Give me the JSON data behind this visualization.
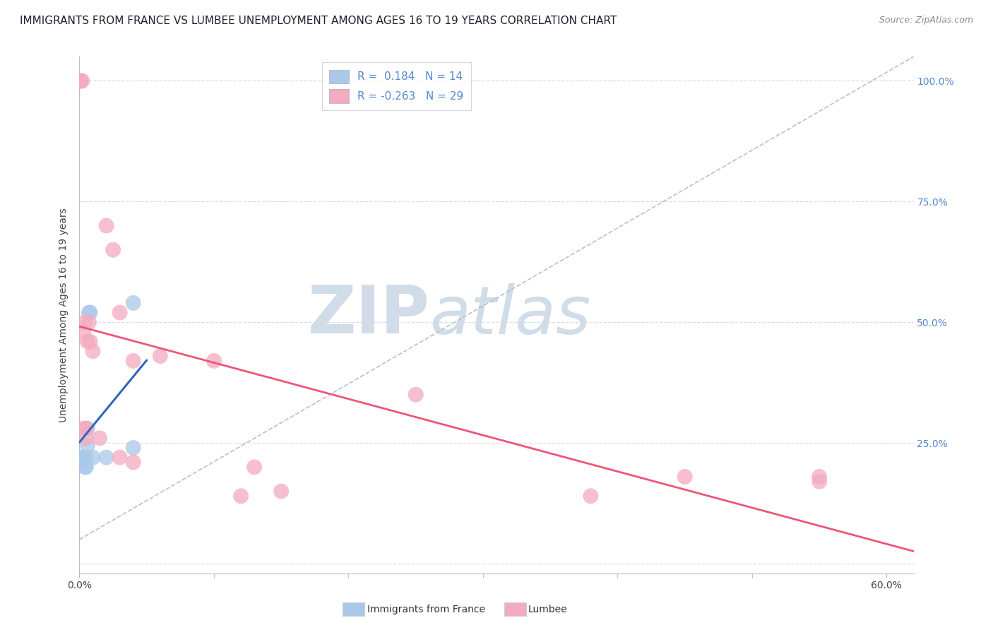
{
  "title": "IMMIGRANTS FROM FRANCE VS LUMBEE UNEMPLOYMENT AMONG AGES 16 TO 19 YEARS CORRELATION CHART",
  "source": "Source: ZipAtlas.com",
  "ylabel": "Unemployment Among Ages 16 to 19 years",
  "xlabel_blue": "Immigrants from France",
  "xlabel_pink": "Lumbee",
  "R_blue": 0.184,
  "N_blue": 14,
  "R_pink": -0.263,
  "N_pink": 29,
  "blue_color": "#aac8e8",
  "pink_color": "#f4aabf",
  "blue_line_color": "#3366bb",
  "pink_line_color": "#ee5577",
  "diag_color": "#aabbcc",
  "grid_color": "#d8dde8",
  "background_color": "#ffffff",
  "right_tick_color": "#5588cc",
  "blue_points_x": [
    0.001,
    0.002,
    0.003,
    0.004,
    0.005,
    0.005,
    0.006,
    0.006,
    0.007,
    0.008,
    0.01,
    0.02,
    0.04,
    0.04
  ],
  "blue_points_y": [
    0.21,
    0.22,
    0.22,
    0.2,
    0.2,
    0.22,
    0.245,
    0.28,
    0.52,
    0.52,
    0.22,
    0.22,
    0.24,
    0.54
  ],
  "pink_points_x": [
    0.001,
    0.001,
    0.002,
    0.003,
    0.003,
    0.004,
    0.005,
    0.005,
    0.006,
    0.007,
    0.008,
    0.01,
    0.015,
    0.02,
    0.025,
    0.03,
    0.03,
    0.04,
    0.04,
    0.06,
    0.1,
    0.12,
    0.13,
    0.15,
    0.25,
    0.38,
    0.45,
    0.55,
    0.55
  ],
  "pink_points_y": [
    1.0,
    1.0,
    1.0,
    0.28,
    0.48,
    0.5,
    0.28,
    0.26,
    0.46,
    0.5,
    0.46,
    0.44,
    0.26,
    0.7,
    0.65,
    0.52,
    0.22,
    0.42,
    0.21,
    0.43,
    0.42,
    0.14,
    0.2,
    0.15,
    0.35,
    0.14,
    0.18,
    0.18,
    0.17
  ],
  "title_fontsize": 11,
  "source_fontsize": 9,
  "label_fontsize": 10,
  "tick_fontsize": 10,
  "legend_fontsize": 11,
  "watermark_zip": "ZIP",
  "watermark_atlas": "atlas",
  "watermark_color": "#d0dce8"
}
